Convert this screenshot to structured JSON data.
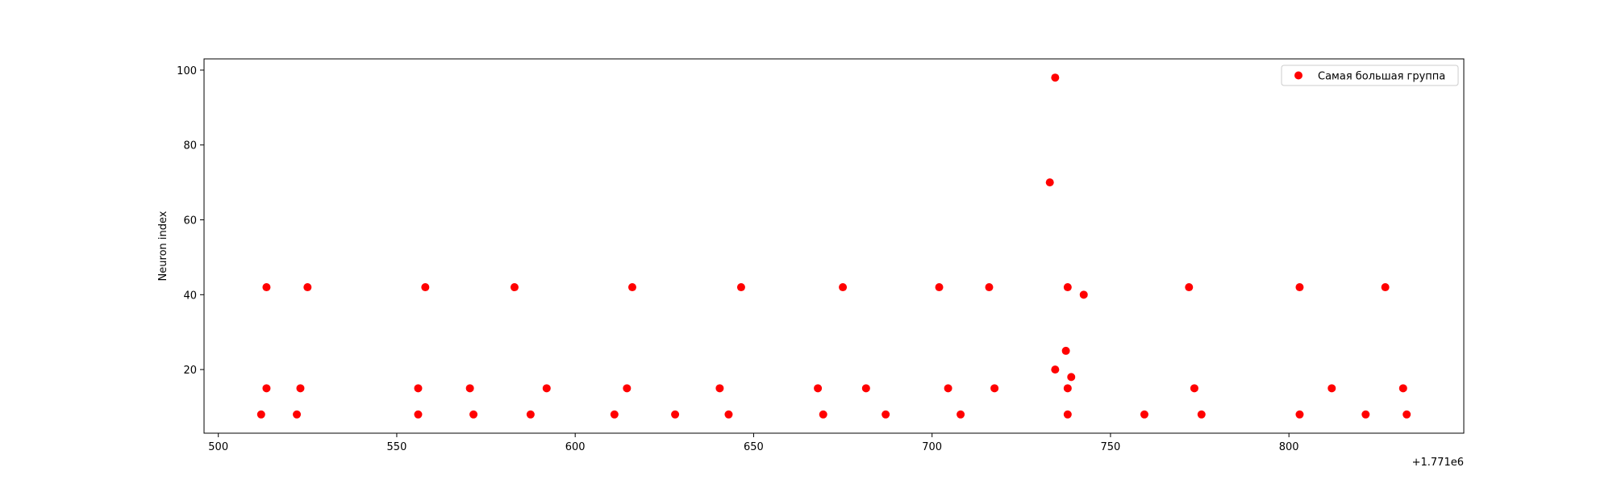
{
  "chart_data": {
    "type": "scatter",
    "title": "",
    "xlabel": "",
    "ylabel": "Neuron index",
    "x_offset_label": "+1.771e6",
    "xlim": [
      496,
      849
    ],
    "ylim": [
      3,
      103
    ],
    "x_ticks": [
      500,
      550,
      600,
      650,
      700,
      750,
      800
    ],
    "y_ticks": [
      20,
      40,
      60,
      80,
      100
    ],
    "grid": false,
    "legend_position": "top-right",
    "series": [
      {
        "name": "Самая большая группа",
        "color": "#ff0000",
        "points": [
          [
            512,
            8
          ],
          [
            513.5,
            42
          ],
          [
            513.5,
            15
          ],
          [
            522,
            8
          ],
          [
            523,
            15
          ],
          [
            525,
            42
          ],
          [
            556,
            8
          ],
          [
            556,
            15
          ],
          [
            558,
            42
          ],
          [
            570.5,
            15
          ],
          [
            571.5,
            8
          ],
          [
            583,
            42
          ],
          [
            587.5,
            8
          ],
          [
            592,
            15
          ],
          [
            611,
            8
          ],
          [
            614.5,
            15
          ],
          [
            616,
            42
          ],
          [
            628,
            8
          ],
          [
            640.5,
            15
          ],
          [
            643,
            8
          ],
          [
            646.5,
            42
          ],
          [
            668,
            15
          ],
          [
            669.5,
            8
          ],
          [
            675,
            42
          ],
          [
            681.5,
            15
          ],
          [
            687,
            8
          ],
          [
            702,
            42
          ],
          [
            704.5,
            15
          ],
          [
            708,
            8
          ],
          [
            716,
            42
          ],
          [
            717.5,
            15
          ],
          [
            733,
            70
          ],
          [
            734.5,
            98
          ],
          [
            734.5,
            20
          ],
          [
            737.5,
            25
          ],
          [
            738,
            42
          ],
          [
            738,
            15
          ],
          [
            738,
            8
          ],
          [
            739,
            18
          ],
          [
            742.5,
            40
          ],
          [
            759.5,
            8
          ],
          [
            772,
            42
          ],
          [
            773.5,
            15
          ],
          [
            775.5,
            8
          ],
          [
            803,
            42
          ],
          [
            803,
            8
          ],
          [
            812,
            15
          ],
          [
            821.5,
            8
          ],
          [
            827,
            42
          ],
          [
            832,
            15
          ],
          [
            833,
            8
          ]
        ]
      }
    ]
  }
}
